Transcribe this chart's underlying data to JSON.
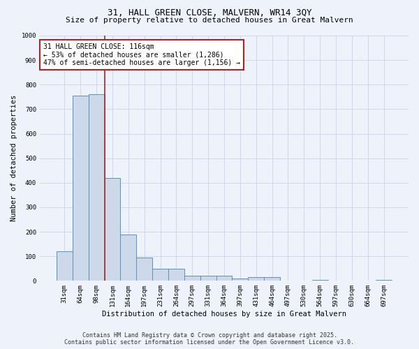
{
  "title_line1": "31, HALL GREEN CLOSE, MALVERN, WR14 3QY",
  "title_line2": "Size of property relative to detached houses in Great Malvern",
  "xlabel": "Distribution of detached houses by size in Great Malvern",
  "ylabel": "Number of detached properties",
  "categories": [
    "31sqm",
    "64sqm",
    "98sqm",
    "131sqm",
    "164sqm",
    "197sqm",
    "231sqm",
    "264sqm",
    "297sqm",
    "331sqm",
    "364sqm",
    "397sqm",
    "431sqm",
    "464sqm",
    "497sqm",
    "530sqm",
    "564sqm",
    "597sqm",
    "630sqm",
    "664sqm",
    "697sqm"
  ],
  "values": [
    120,
    755,
    760,
    420,
    190,
    95,
    50,
    50,
    20,
    20,
    20,
    10,
    15,
    15,
    0,
    0,
    5,
    0,
    0,
    0,
    5
  ],
  "bar_color": "#cdd8e8",
  "bar_edge_color": "#5a8fc4",
  "vline_x": 2.5,
  "vline_color": "#b22222",
  "ylim": [
    0,
    1000
  ],
  "yticks": [
    0,
    100,
    200,
    300,
    400,
    500,
    600,
    700,
    800,
    900,
    1000
  ],
  "annotation_text": "31 HALL GREEN CLOSE: 116sqm\n← 53% of detached houses are smaller (1,286)\n47% of semi-detached houses are larger (1,156) →",
  "annotation_box_color": "#ffffff",
  "annotation_box_edge_color": "#b22222",
  "background_color": "#eef2fa",
  "grid_color": "#c8d4e8",
  "footer_line1": "Contains HM Land Registry data © Crown copyright and database right 2025.",
  "footer_line2": "Contains public sector information licensed under the Open Government Licence v3.0.",
  "title_fontsize": 9,
  "subtitle_fontsize": 8,
  "axis_label_fontsize": 7.5,
  "tick_fontsize": 6.5,
  "annotation_fontsize": 7,
  "footer_fontsize": 6
}
